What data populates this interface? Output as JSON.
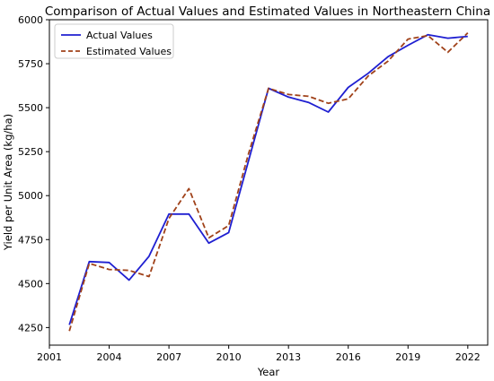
{
  "chart_data": {
    "type": "line",
    "title": "Comparison of Actual Values and Estimated Values in Northeastern China",
    "xlabel": "Year",
    "ylabel": "Yield per Unit Area (kg/ha)",
    "xlim": [
      2001,
      2023
    ],
    "ylim": [
      4150,
      6000
    ],
    "xticks": [
      2001,
      2004,
      2007,
      2010,
      2013,
      2016,
      2019,
      2022
    ],
    "yticks": [
      4250,
      4500,
      4750,
      5000,
      5250,
      5500,
      5750,
      6000
    ],
    "grid": false,
    "legend_position": "top-left",
    "x": [
      2002,
      2003,
      2004,
      2005,
      2006,
      2007,
      2008,
      2009,
      2010,
      2011,
      2012,
      2013,
      2014,
      2015,
      2016,
      2017,
      2018,
      2019,
      2020,
      2021,
      2022
    ],
    "series": [
      {
        "name": "Actual Values",
        "color": "#1f1fd1",
        "style": "solid",
        "values": [
          4265,
          4625,
          4620,
          4520,
          4655,
          4895,
          4895,
          4730,
          4790,
          5200,
          5610,
          5560,
          5530,
          5475,
          5615,
          5695,
          5790,
          5855,
          5915,
          5895,
          5905
        ]
      },
      {
        "name": "Estimated Values",
        "color": "#a0421a",
        "style": "dashed",
        "values": [
          4230,
          4615,
          4580,
          4575,
          4540,
          4870,
          5040,
          4760,
          4830,
          5240,
          5610,
          5575,
          5565,
          5525,
          5550,
          5680,
          5765,
          5890,
          5910,
          5815,
          5925
        ]
      }
    ]
  }
}
